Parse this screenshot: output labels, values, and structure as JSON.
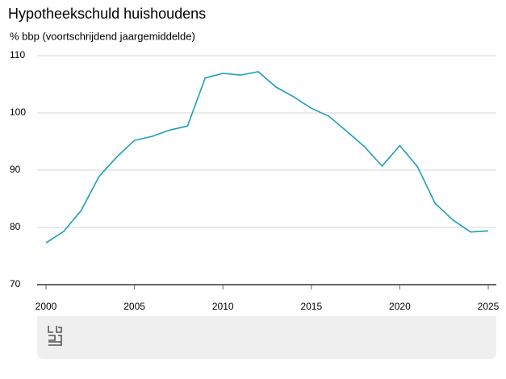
{
  "chart_data": {
    "type": "line",
    "title": "Hypotheekschuld huishoudens",
    "subtitle": "% bbp (voortschrijdend jaargemiddelde)",
    "x": [
      2000,
      2001,
      2002,
      2003,
      2004,
      2005,
      2006,
      2007,
      2008,
      2009,
      2010,
      2011,
      2012,
      2013,
      2014,
      2015,
      2016,
      2017,
      2018,
      2019,
      2020,
      2021,
      2022,
      2023,
      2024,
      2025
    ],
    "values": [
      77.3,
      79.3,
      83.0,
      88.9,
      92.3,
      95.2,
      95.9,
      97.0,
      97.7,
      106.1,
      106.9,
      106.6,
      107.2,
      104.5,
      102.8,
      100.8,
      99.4,
      96.8,
      94.1,
      90.7,
      94.3,
      90.6,
      84.2,
      81.3,
      79.2,
      79.4
    ],
    "color": "#1a9fb8",
    "xlim": [
      2000,
      2025
    ],
    "xticks": [
      2000,
      2005,
      2010,
      2015,
      2020,
      2025
    ],
    "ylim": [
      70,
      110
    ],
    "yticks": [
      70,
      80,
      90,
      100,
      110
    ],
    "grid": true
  }
}
